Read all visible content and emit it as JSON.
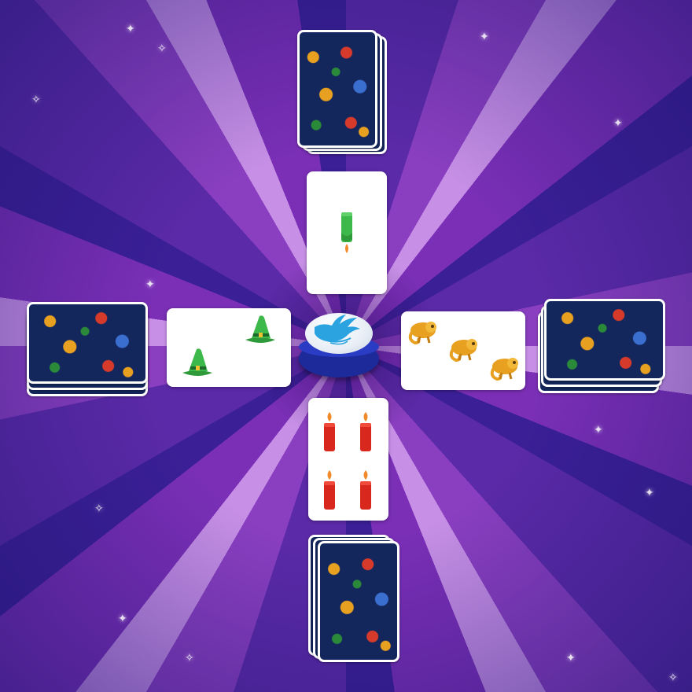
{
  "board": {
    "background_colors": [
      "#3a1f96",
      "#5b2aa8",
      "#8a3fc0",
      "#c790e6"
    ]
  },
  "decks": [
    {
      "position": "top",
      "card_back": "wizard-pattern-back"
    },
    {
      "position": "left",
      "card_back": "wizard-pattern-back"
    },
    {
      "position": "right",
      "card_back": "wizard-pattern-back"
    },
    {
      "position": "bottom",
      "card_back": "wizard-pattern-back"
    }
  ],
  "face_cards": [
    {
      "position": "top",
      "symbol": "candle",
      "color": "#3db84a",
      "count": 1
    },
    {
      "position": "left",
      "symbol": "hat",
      "color": "#3db84a",
      "count": 2
    },
    {
      "position": "right",
      "symbol": "chameleon",
      "color": "#e8a020",
      "count": 3
    },
    {
      "position": "bottom",
      "symbol": "candle",
      "color": "#d8281e",
      "count": 4
    }
  ],
  "buzzer": {
    "icon": "hand-icon",
    "cap_color": "#eef2f8",
    "base_color": "#1c2a9a",
    "hand_color": "#2aa3e0"
  }
}
